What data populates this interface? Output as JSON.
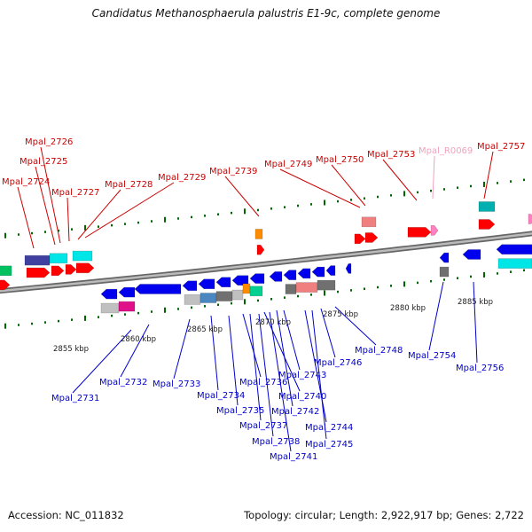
{
  "title": "Candidatus Methanosphaerula palustris E1-9c, complete genome",
  "footer": {
    "accession": "Accession: NC_011832",
    "summary": "Topology: circular; Length: 2,922,917 bp; Genes: 2,722"
  },
  "kbp_ticks": [
    "2855 kbp",
    "2860 kbp",
    "2865 kbp",
    "2870 kbp",
    "2875 kbp",
    "2880 kbp",
    "2885 kbp"
  ],
  "top_labels": [
    "Mpal_2724",
    "Mpal_2725",
    "Mpal_2726",
    "Mpal_2727",
    "Mpal_2728",
    "Mpal_2729",
    "Mpal_2739",
    "Mpal_2749",
    "Mpal_2750",
    "Mpal_2753",
    "Mpal_R0069",
    "Mpal_2757"
  ],
  "bottom_labels": [
    "Mpal_2731",
    "Mpal_2732",
    "Mpal_2733",
    "Mpal_2734",
    "Mpal_2735",
    "Mpal_2736",
    "Mpal_2737",
    "Mpal_2738",
    "Mpal_2740",
    "Mpal_2741",
    "Mpal_2742",
    "Mpal_2743",
    "Mpal_2744",
    "Mpal_2745",
    "Mpal_2746",
    "Mpal_2748",
    "Mpal_2754",
    "Mpal_2756"
  ],
  "colors": {
    "top_label": "#cc0000",
    "rna_label": "#f4a0c0",
    "bottom_label": "#0000cc",
    "forward_gene": "#ff0000",
    "reverse_gene": "#0000ee",
    "tick": "#006600",
    "backbone": "#999999"
  }
}
